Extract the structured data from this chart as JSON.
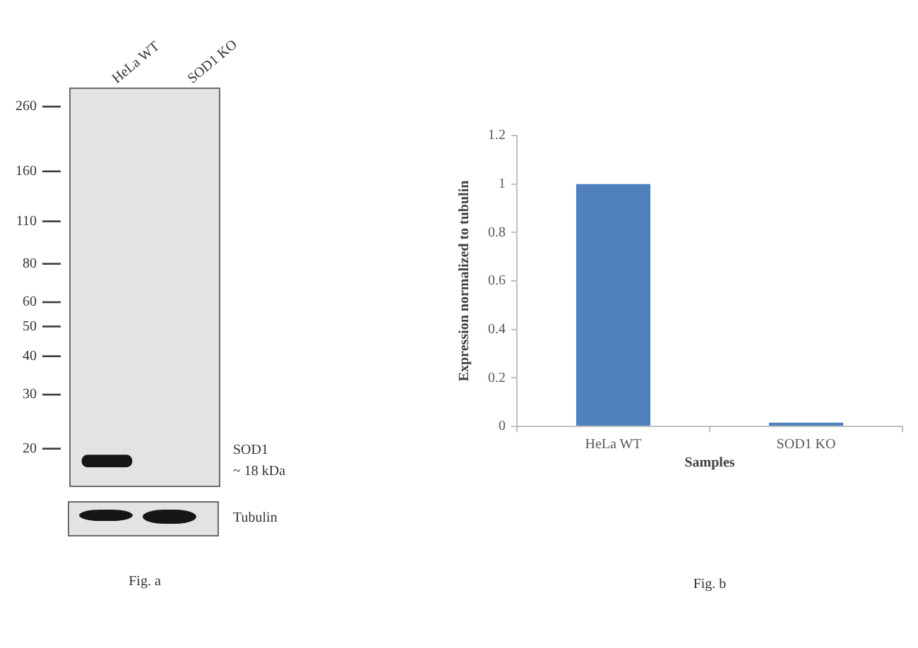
{
  "chart_data": [
    {
      "type": "bar",
      "categories": [
        "HeLa WT",
        "SOD1 KO"
      ],
      "values": [
        1.7,
        null
      ],
      "base": [
        17.4,
        null
      ],
      "color": "#151515",
      "ylim": [
        15,
        300
      ],
      "yticks": [
        260,
        160,
        110,
        80,
        60,
        50,
        40,
        30,
        20
      ],
      "log": true,
      "annotations": [
        "SOD1\n~ 18 kDa",
        "Tubulin",
        "Fig. a"
      ]
    },
    {
      "type": "bar",
      "categories": [
        "HeLa WT",
        "SOD1 KO"
      ],
      "values": [
        1,
        0.015
      ],
      "color": "#4f81bd",
      "ylim": [
        0,
        1.2
      ],
      "yticks": [
        0,
        0.2,
        0.4,
        0.6,
        0.8,
        1,
        1.2
      ],
      "xlabel": "Samples",
      "ylabel": "Expression normalized to tubulin",
      "annotations": [
        "Fig. b"
      ]
    }
  ]
}
